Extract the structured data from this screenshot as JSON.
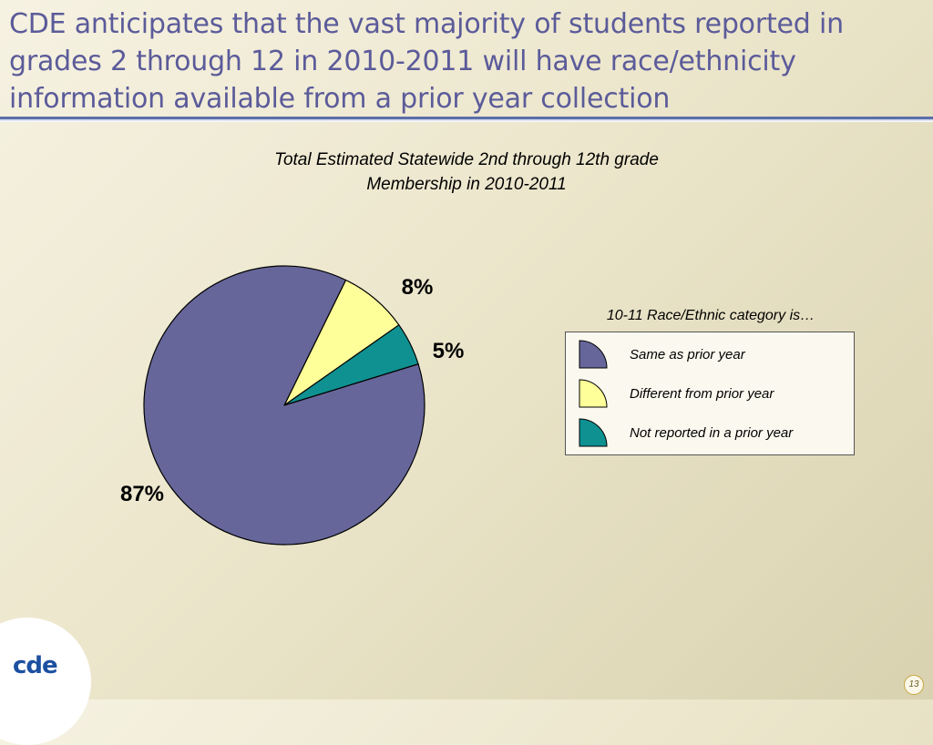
{
  "slide": {
    "title": "CDE anticipates that the vast majority of students reported in grades 2 through 12 in 2010-2011 will have race/ethnicity information available from a prior year collection",
    "logo_text": "cde",
    "page_number": "13"
  },
  "chart_data": {
    "type": "pie",
    "title": "Total Estimated Statewide 2nd through 12th grade Membership in 2010-2011",
    "title_lines": [
      "Total Estimated Statewide 2nd through 12th grade",
      "Membership in 2010-2011"
    ],
    "legend_title": "10-11 Race/Ethnic category is…",
    "legend_position": "right",
    "slices": [
      {
        "name": "Same as prior year",
        "value": 87,
        "label": "87%",
        "color": "#66669a"
      },
      {
        "name": "Different from prior year",
        "value": 8,
        "label": "8%",
        "color": "#ffff99"
      },
      {
        "name": "Not reported in a prior year",
        "value": 5,
        "label": "5%",
        "color": "#0f9191"
      }
    ]
  }
}
